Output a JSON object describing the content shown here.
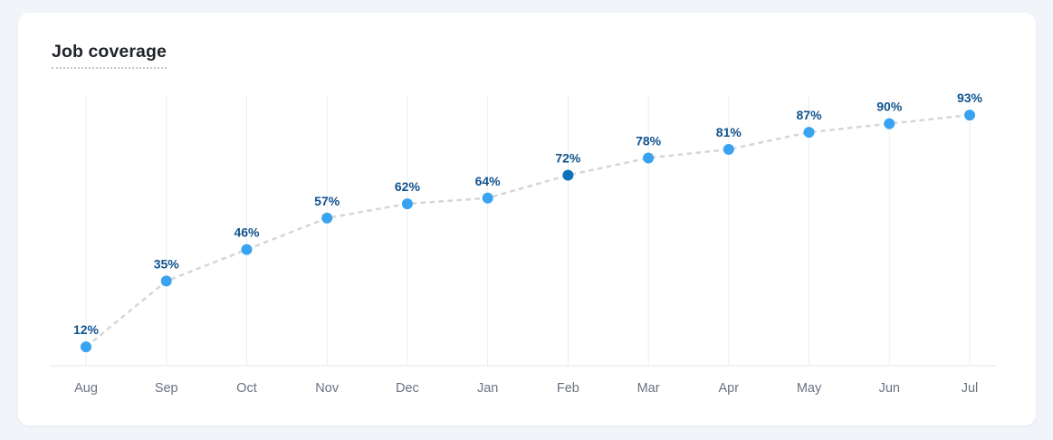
{
  "card": {
    "title": "Job coverage"
  },
  "chart_data": {
    "type": "line",
    "line_style": "dashed",
    "title": "Job coverage",
    "xlabel": "",
    "ylabel": "",
    "categories": [
      "Aug",
      "Sep",
      "Oct",
      "Nov",
      "Dec",
      "Jan",
      "Feb",
      "Mar",
      "Apr",
      "May",
      "Jun",
      "Jul"
    ],
    "values": [
      12,
      35,
      46,
      57,
      62,
      64,
      72,
      78,
      81,
      87,
      90,
      93
    ],
    "point_labels": [
      "12%",
      "35%",
      "46%",
      "57%",
      "62%",
      "64%",
      "72%",
      "78%",
      "81%",
      "87%",
      "90%",
      "93%"
    ],
    "highlighted_index": 6,
    "ylim": [
      0,
      100
    ],
    "grid": "vertical-only",
    "legend": "none",
    "colors": {
      "point": "#3aa3f1",
      "highlighted_point": "#0d72bc",
      "value_label": "#11538e",
      "dashed_line": "#d4d6d9",
      "gridline": "#e9eef2",
      "axis_line": "#e3e7ea",
      "tick_label": "#6b7280",
      "card_background": "#ffffff",
      "page_background": "#f1f5f9",
      "title_text": "#1f2329",
      "title_underline": "#bfc5cb"
    }
  }
}
